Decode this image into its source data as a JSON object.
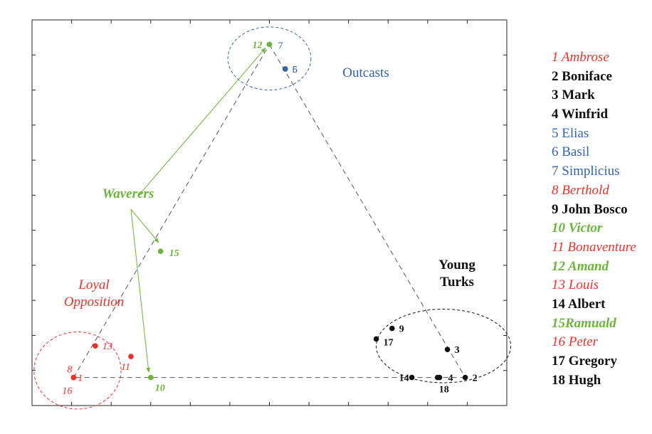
{
  "chart_data": {
    "type": "scatter",
    "xlim": [
      0,
      12
    ],
    "ylim": [
      0,
      11
    ],
    "grid": false,
    "colors": {
      "red": "#e8322c",
      "black": "#111111",
      "blue": "#3464ac",
      "green": "#6cb43c"
    },
    "groups": [
      {
        "name": "Outcasts",
        "color": "blue",
        "style": "normal",
        "center": [
          6.0,
          9.9
        ],
        "radius": [
          1.05,
          0.9
        ]
      },
      {
        "name": "Young Turks",
        "lines": [
          "Young",
          "Turks"
        ],
        "color": "black",
        "style": "bold",
        "center": [
          10.4,
          1.7
        ],
        "radius": [
          1.7,
          1.05
        ]
      },
      {
        "name": "Loyal Opposition",
        "lines": [
          "Loyal",
          "Opposition"
        ],
        "color": "red",
        "style": "italic",
        "center": [
          1.15,
          1.0
        ],
        "radius": [
          1.1,
          1.1
        ]
      },
      {
        "name": "Waverers",
        "lines": [
          "Waverers"
        ],
        "color": "green",
        "style": "bold-italic",
        "center": null
      }
    ],
    "points": [
      {
        "id": 1,
        "label": "1",
        "color": "red",
        "x": 1.05,
        "y": 0.8
      },
      {
        "id": 2,
        "label": "2",
        "color": "black",
        "x": 10.95,
        "y": 0.8
      },
      {
        "id": 3,
        "label": "3",
        "color": "black",
        "x": 10.5,
        "y": 1.6
      },
      {
        "id": 4,
        "label": "4",
        "color": "black",
        "x": 10.3,
        "y": 0.8
      },
      {
        "id": 5,
        "label": "5",
        "color": "blue",
        "x": 6.4,
        "y": 9.6
      },
      {
        "id": 6,
        "label": "6",
        "color": "blue",
        "x": 6.4,
        "y": 9.6
      },
      {
        "id": 7,
        "label": "7",
        "color": "blue",
        "x": 6.0,
        "y": 10.3
      },
      {
        "id": 8,
        "label": "8",
        "color": "red",
        "x": 1.05,
        "y": 0.8
      },
      {
        "id": 9,
        "label": "9",
        "color": "black",
        "x": 9.1,
        "y": 2.2
      },
      {
        "id": 10,
        "label": "10",
        "color": "green",
        "x": 3.0,
        "y": 0.8
      },
      {
        "id": 11,
        "label": "11",
        "color": "red",
        "x": 2.5,
        "y": 1.4
      },
      {
        "id": 12,
        "label": "12",
        "color": "green",
        "x": 6.0,
        "y": 10.3
      },
      {
        "id": 13,
        "label": "13",
        "color": "red",
        "x": 1.6,
        "y": 1.7
      },
      {
        "id": 14,
        "label": "14",
        "color": "black",
        "x": 9.6,
        "y": 0.8
      },
      {
        "id": 15,
        "label": "15",
        "color": "green",
        "x": 3.25,
        "y": 4.4
      },
      {
        "id": 16,
        "label": "16",
        "color": "red",
        "x": 1.05,
        "y": 0.8
      },
      {
        "id": 17,
        "label": "17",
        "color": "black",
        "x": 8.7,
        "y": 1.9
      },
      {
        "id": 18,
        "label": "18",
        "color": "black",
        "x": 10.25,
        "y": 0.8
      }
    ],
    "dashed_triangle": [
      [
        1.05,
        0.8
      ],
      [
        6.0,
        10.3
      ],
      [
        10.95,
        0.8
      ]
    ],
    "waverer_arrows": [
      {
        "from": [
          2.7,
          6.0
        ],
        "to": [
          5.9,
          10.2
        ]
      },
      {
        "from": [
          2.5,
          5.6
        ],
        "to": [
          3.2,
          4.65
        ]
      },
      {
        "from": [
          2.5,
          5.6
        ],
        "to": [
          2.95,
          0.95
        ]
      }
    ],
    "legend": [
      {
        "text": "1 Ambrose",
        "color": "red",
        "style": "italic"
      },
      {
        "text": "2 Boniface",
        "color": "black",
        "style": "bold"
      },
      {
        "text": "3 Mark",
        "color": "black",
        "style": "bold"
      },
      {
        "text": "4 Winfrid",
        "color": "black",
        "style": "bold"
      },
      {
        "text": "5 Elias",
        "color": "blue",
        "style": "normal"
      },
      {
        "text": "6 Basil",
        "color": "blue",
        "style": "normal"
      },
      {
        "text": "7 Simplicius",
        "color": "blue",
        "style": "normal"
      },
      {
        "text": "8 Berthold",
        "color": "red",
        "style": "italic"
      },
      {
        "text": "9 John Bosco",
        "color": "black",
        "style": "bold"
      },
      {
        "text": "10 Victor",
        "color": "green",
        "style": "bold-italic"
      },
      {
        "text": "11 Bonaventure",
        "color": "red",
        "style": "italic"
      },
      {
        "text": "12 Amand",
        "color": "green",
        "style": "bold-italic"
      },
      {
        "text": "13 Louis",
        "color": "red",
        "style": "italic"
      },
      {
        "text": "14 Albert",
        "color": "black",
        "style": "bold"
      },
      {
        "text": "15Ramuald",
        "color": "green",
        "style": "bold-italic"
      },
      {
        "text": "16 Peter",
        "color": "red",
        "style": "italic"
      },
      {
        "text": "17 Gregory",
        "color": "black",
        "style": "bold"
      },
      {
        "text": "18 Hugh",
        "color": "black",
        "style": "bold"
      }
    ]
  }
}
